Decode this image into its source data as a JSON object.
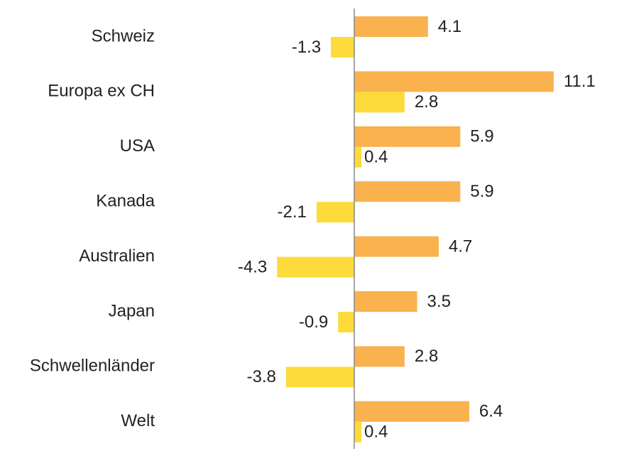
{
  "chart_data": {
    "type": "bar",
    "orientation": "horizontal",
    "categories": [
      "Schweiz",
      "Europa ex CH",
      "USA",
      "Kanada",
      "Australien",
      "Japan",
      "Schwellenländer",
      "Welt"
    ],
    "series": [
      {
        "values": [
          4.1,
          11.1,
          5.9,
          5.9,
          4.7,
          3.5,
          2.8,
          6.4
        ],
        "color": "#F9B24E"
      },
      {
        "values": [
          -1.3,
          2.8,
          0.4,
          -2.1,
          -4.3,
          -0.9,
          -3.8,
          0.4
        ],
        "color": "#FCDB3A"
      }
    ],
    "value_labels": [
      [
        "4.1",
        "11.1",
        "5.9",
        "5.9",
        "4.7",
        "3.5",
        "2.8",
        "6.4"
      ],
      [
        "-1.3",
        "2.8",
        "0.4",
        "-2.1",
        "-4.3",
        "-0.9",
        "-3.8",
        "0.4"
      ]
    ],
    "title": "",
    "xlabel": "",
    "ylabel": "",
    "grid": false,
    "legend": "none",
    "axis_line_color": "#888888"
  }
}
